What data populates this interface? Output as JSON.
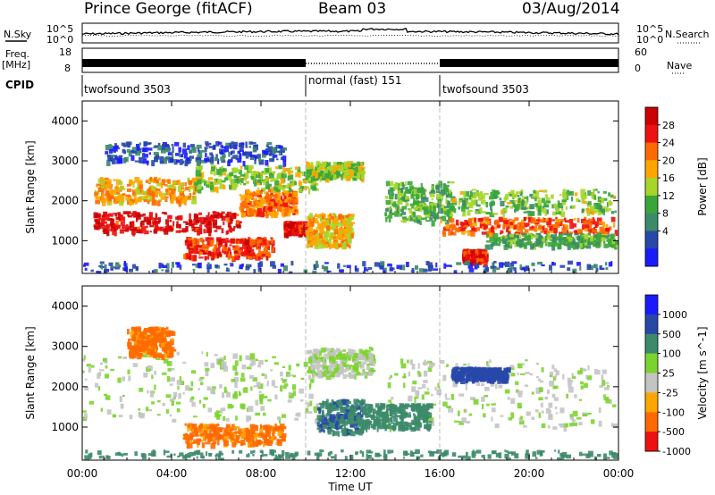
{
  "header": {
    "station": "Prince George (fitACF)",
    "beam": "Beam 03",
    "date": "03/Aug/2014"
  },
  "side_labels": {
    "nsky": "N.Sky",
    "freq": "Freq.",
    "freq_unit": "[MHz]",
    "cpid": "CPID",
    "nsearch": "N.Search",
    "nave": "Nave"
  },
  "noise_axis": {
    "left": [
      "10^5",
      "10^0"
    ],
    "right": [
      "10^5",
      "10^0"
    ]
  },
  "freq_axis": {
    "left": [
      "18",
      "8"
    ],
    "right": [
      "60",
      "0"
    ]
  },
  "cpid_segments": [
    {
      "label": "twofsound 3503",
      "start_h": 0,
      "end_h": 10
    },
    {
      "label": "normal (fast) 151",
      "start_h": 10,
      "end_h": 16
    },
    {
      "label": "twofsound 3503",
      "start_h": 16,
      "end_h": 24
    }
  ],
  "colors": {
    "power": [
      "#1a1aff",
      "#2848a8",
      "#3c8a6a",
      "#3aa63a",
      "#a6d62a",
      "#ffa500",
      "#ff6a00",
      "#ee1111",
      "#cc0000"
    ],
    "velocity": [
      "#1a1aff",
      "#2848a8",
      "#3c8a6a",
      "#7bd42e",
      "#c4c4c4",
      "#ffa500",
      "#ff6a00",
      "#ee1111"
    ]
  },
  "chart_data": [
    {
      "type": "heatmap",
      "title": "",
      "xlabel": "Time UT",
      "ylabel": "Slant Range [km]",
      "x_ticks": [
        "00:00",
        "04:00",
        "08:00",
        "12:00",
        "16:00",
        "20:00",
        "00:00"
      ],
      "y_ticks": [
        "1000",
        "2000",
        "3000",
        "4000"
      ],
      "xlim": [
        0,
        24
      ],
      "ylim": [
        180,
        4500
      ],
      "colorbar": {
        "label": "Power [dB]",
        "ticks": [
          "28",
          "24",
          "20",
          "16",
          "12",
          "8",
          "4"
        ],
        "range": [
          0,
          30
        ]
      },
      "regions": [
        {
          "t": [
            0.5,
            7.0
          ],
          "r": [
            1250,
            1750
          ],
          "value": 27
        },
        {
          "t": [
            7.0,
            9.5
          ],
          "r": [
            1700,
            2300
          ],
          "value": 21
        },
        {
          "t": [
            0.5,
            5.0
          ],
          "r": [
            2000,
            2600
          ],
          "value": 19
        },
        {
          "t": [
            4.5,
            8.5
          ],
          "r": [
            600,
            1100
          ],
          "value": 24
        },
        {
          "t": [
            9.0,
            10.0
          ],
          "r": [
            1200,
            1500
          ],
          "value": 26
        },
        {
          "t": [
            5.0,
            10.5
          ],
          "r": [
            2300,
            2900
          ],
          "value": 14
        },
        {
          "t": [
            10.0,
            12.5
          ],
          "r": [
            2600,
            3000
          ],
          "value": 15
        },
        {
          "t": [
            10.0,
            12.0
          ],
          "r": [
            900,
            1700
          ],
          "value": 18
        },
        {
          "t": [
            13.5,
            16.5
          ],
          "r": [
            1500,
            2500
          ],
          "value": 12
        },
        {
          "t": [
            16.0,
            24.0
          ],
          "r": [
            1200,
            1600
          ],
          "value": 23
        },
        {
          "t": [
            16.5,
            24.0
          ],
          "r": [
            1700,
            2300
          ],
          "value": 13
        },
        {
          "t": [
            17.0,
            18.0
          ],
          "r": [
            500,
            800
          ],
          "value": 25
        },
        {
          "t": [
            18.0,
            24.0
          ],
          "r": [
            900,
            1200
          ],
          "value": 11
        },
        {
          "t": [
            0.0,
            24.0
          ],
          "r": [
            200,
            500
          ],
          "value": 5
        },
        {
          "t": [
            1.0,
            9.0
          ],
          "r": [
            3000,
            3500
          ],
          "value": 5
        }
      ]
    },
    {
      "type": "heatmap",
      "title": "",
      "xlabel": "Time UT",
      "ylabel": "Slant Range [km]",
      "x_ticks": [
        "00:00",
        "04:00",
        "08:00",
        "12:00",
        "16:00",
        "20:00",
        "00:00"
      ],
      "y_ticks": [
        "1000",
        "2000",
        "3000",
        "4000"
      ],
      "xlim": [
        0,
        24
      ],
      "ylim": [
        180,
        4500
      ],
      "colorbar": {
        "label": "Velocity [m s^-1]",
        "ticks": [
          "1000",
          "500",
          "100",
          "25",
          "-25",
          "-100",
          "-500",
          "-1000"
        ],
        "range": [
          -1000,
          1000
        ]
      },
      "regions": [
        {
          "t": [
            0.0,
            10.5
          ],
          "r": [
            1200,
            2900
          ],
          "value": 0
        },
        {
          "t": [
            10.0,
            13.0
          ],
          "r": [
            2300,
            3000
          ],
          "value": 0
        },
        {
          "t": [
            13.5,
            24.0
          ],
          "r": [
            1000,
            2700
          ],
          "value": 0
        },
        {
          "t": [
            4.5,
            9.0
          ],
          "r": [
            600,
            1100
          ],
          "value": -150
        },
        {
          "t": [
            10.5,
            12.5
          ],
          "r": [
            900,
            1700
          ],
          "value": 80
        },
        {
          "t": [
            2.0,
            4.0
          ],
          "r": [
            2800,
            3500
          ],
          "value": -150
        },
        {
          "t": [
            12.5,
            15.5
          ],
          "r": [
            1000,
            1600
          ],
          "value": 60
        },
        {
          "t": [
            0.0,
            24.0
          ],
          "r": [
            200,
            450
          ],
          "value": 60
        },
        {
          "t": [
            16.5,
            19.0
          ],
          "r": [
            2200,
            2500
          ],
          "value": 300
        }
      ]
    }
  ]
}
